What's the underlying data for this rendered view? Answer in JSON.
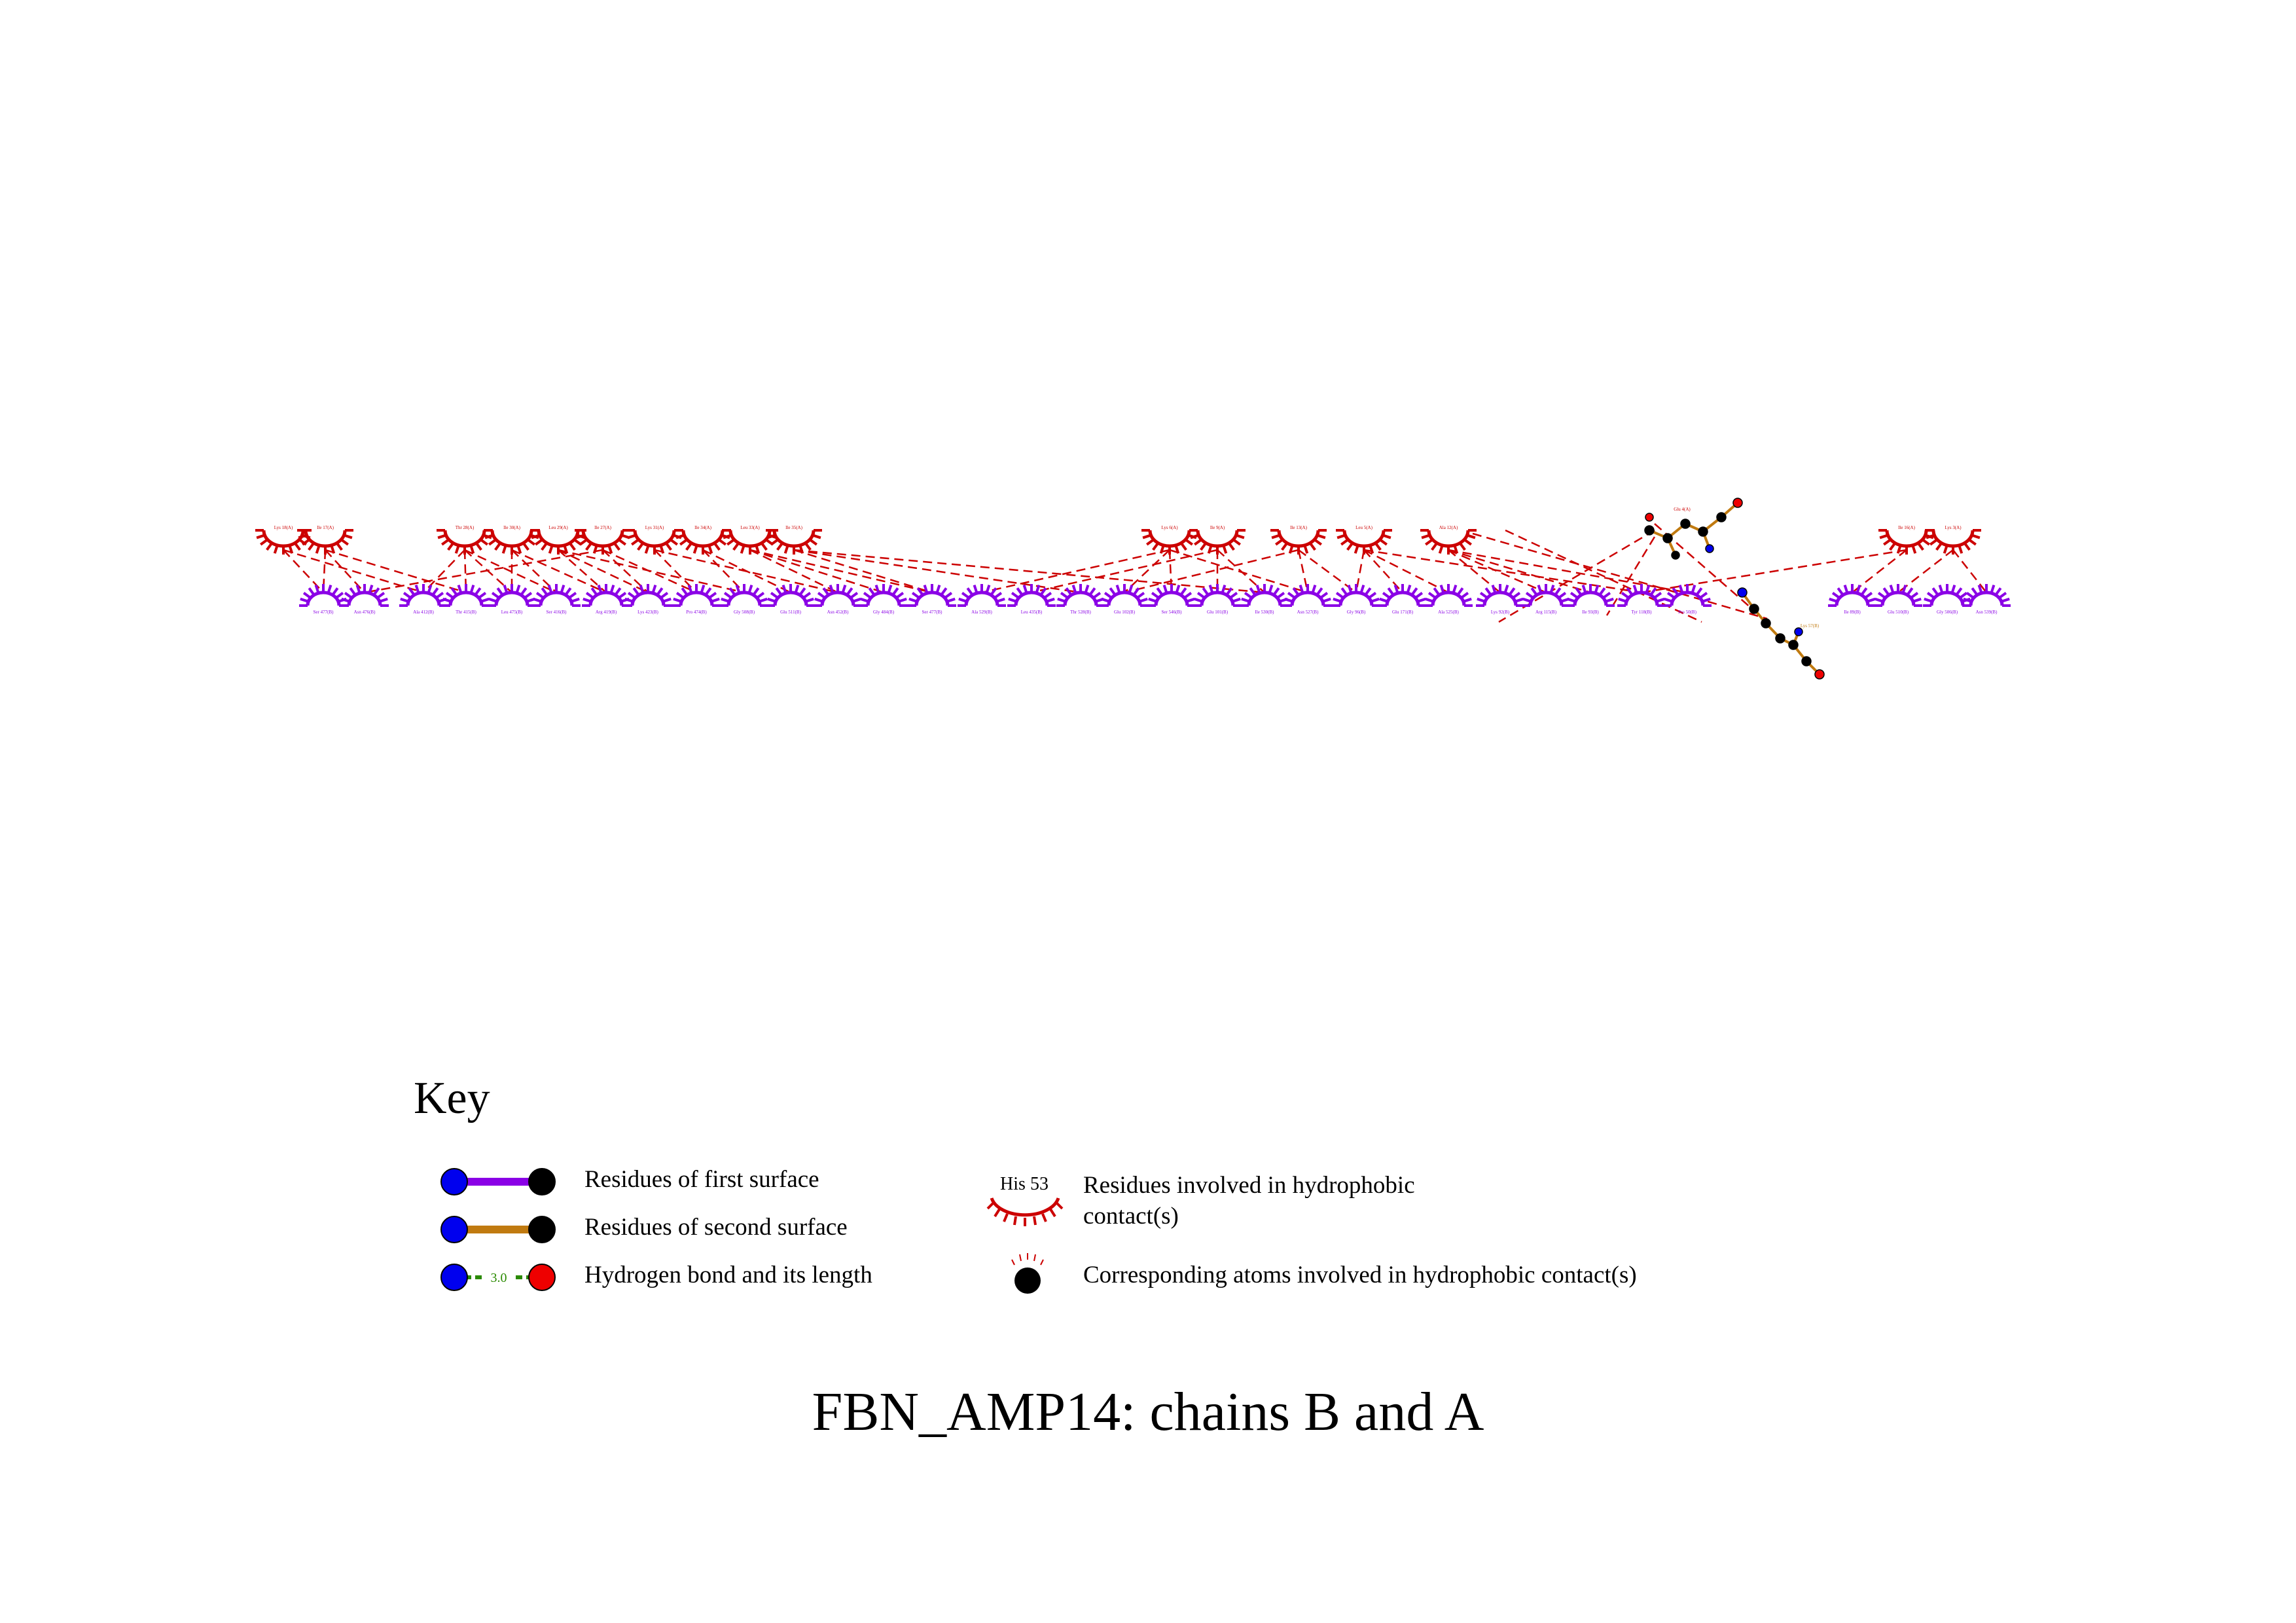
{
  "title": "FBN_AMP14: chains B and A",
  "colors": {
    "first_surface": "#8a00e6",
    "second_surface": "#c07a10",
    "hydrophobic": "#cc0000",
    "hbond": "#2a8a00",
    "atom_n": "#0000ee",
    "atom_o": "#ee0000",
    "atom_c": "#000000"
  },
  "chain_a_residues": [
    {
      "label": "Lys 18(A)"
    },
    {
      "label": "Ile 17(A)"
    },
    {
      "label": "Thr 28(A)"
    },
    {
      "label": "Ile 30(A)"
    },
    {
      "label": "Leu 29(A)"
    },
    {
      "label": "Ile 27(A)"
    },
    {
      "label": "Lys 31(A)"
    },
    {
      "label": "Ile 34(A)"
    },
    {
      "label": "Leu 33(A)"
    },
    {
      "label": "Ile 35(A)"
    },
    {
      "label": "Lys 6(A)"
    },
    {
      "label": "Ile 9(A)"
    },
    {
      "label": "Ile 13(A)"
    },
    {
      "label": "Leu 5(A)"
    },
    {
      "label": "Ala 12(A)"
    },
    {
      "label": "Ile 16(A)"
    },
    {
      "label": "Lys 3(A)"
    }
  ],
  "chain_b_residues": [
    {
      "label": "Ser 477(B)"
    },
    {
      "label": "Asn 476(B)"
    },
    {
      "label": "Ala 412(B)"
    },
    {
      "label": "Thr 415(B)"
    },
    {
      "label": "Leu 475(B)"
    },
    {
      "label": "Ser 416(B)"
    },
    {
      "label": "Arg 419(B)"
    },
    {
      "label": "Lys 423(B)"
    },
    {
      "label": "Pro 474(B)"
    },
    {
      "label": "Gly 508(B)"
    },
    {
      "label": "Glu 511(B)"
    },
    {
      "label": "Asn 452(B)"
    },
    {
      "label": "Gly 484(B)"
    },
    {
      "label": "Ser 477(B)"
    },
    {
      "label": "Ala 529(B)"
    },
    {
      "label": "Leu 435(B)"
    },
    {
      "label": "Thr 528(B)"
    },
    {
      "label": "Glu 102(B)"
    },
    {
      "label": "Ser 546(B)"
    },
    {
      "label": "Glu 101(B)"
    },
    {
      "label": "Ile 530(B)"
    },
    {
      "label": "Asn 527(B)"
    },
    {
      "label": "Gly 96(B)"
    },
    {
      "label": "Glu 171(B)"
    },
    {
      "label": "Ala 525(B)"
    },
    {
      "label": "Lys 92(B)"
    },
    {
      "label": "Arg 115(B)"
    },
    {
      "label": "Ile 93(B)"
    },
    {
      "label": "Tyr 118(B)"
    },
    {
      "label": "Pro 50(B)"
    },
    {
      "label": "Ile 89(B)"
    },
    {
      "label": "Glu 510(B)"
    },
    {
      "label": "Gly 506(B)"
    },
    {
      "label": "Asn 539(B)"
    }
  ],
  "ligands": [
    {
      "label": "Glu 4(A)"
    },
    {
      "label": "Lys 57(B)"
    }
  ],
  "key": {
    "title": "Key",
    "first_surface": "Residues of first surface",
    "second_surface": "Residues of second surface",
    "hbond": "Hydrogen bond and its length",
    "hbond_length": "3.0",
    "hydrophobic_example": "His 53",
    "hydrophobic_line1": "Residues involved in hydrophobic",
    "hydrophobic_line2": "contact(s)",
    "corresponding_atoms": "Corresponding atoms involved in hydrophobic contact(s)"
  }
}
